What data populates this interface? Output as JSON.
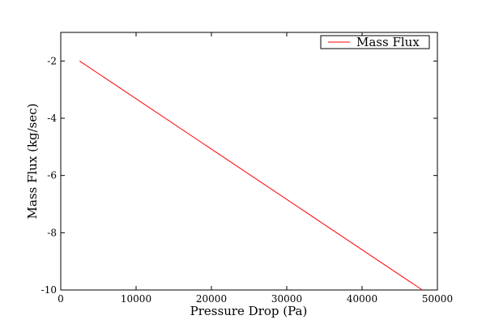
{
  "chart_data": {
    "type": "line",
    "xlabel": "Pressure Drop (Pa)",
    "ylabel": "Mass Flux (kg/sec)",
    "xlim": [
      0,
      50000
    ],
    "ylim": [
      -10,
      -1
    ],
    "x_ticks": [
      0,
      10000,
      20000,
      30000,
      40000,
      50000
    ],
    "y_ticks": [
      -2,
      -4,
      -6,
      -8,
      -10
    ],
    "grid": false,
    "legend_position": "top-right",
    "series": [
      {
        "name": "Mass Flux",
        "color": "#ff0000",
        "x": [
          2500,
          48000
        ],
        "y": [
          -2,
          -10
        ]
      }
    ]
  }
}
